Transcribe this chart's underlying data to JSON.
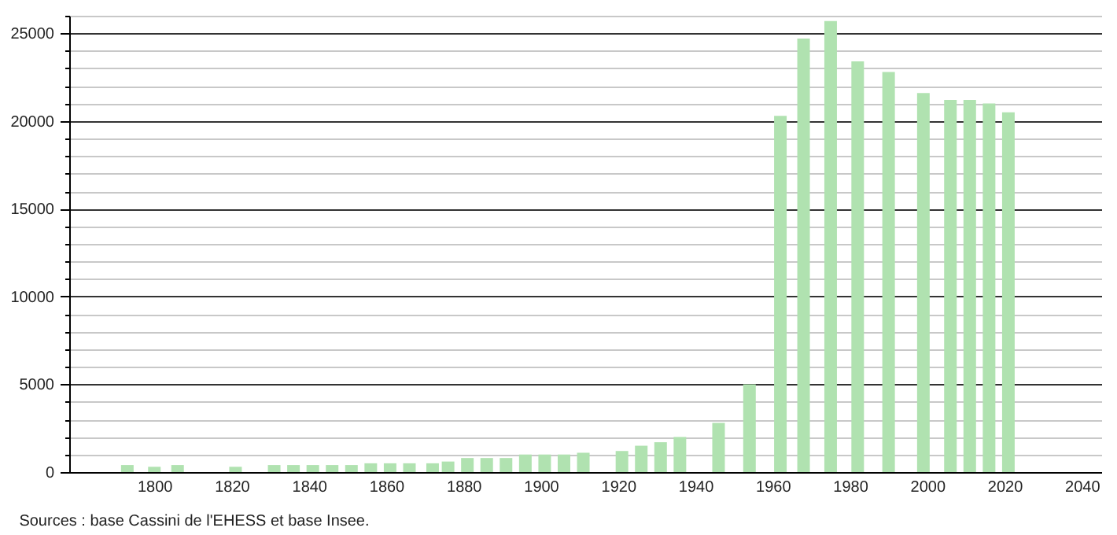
{
  "chart_data": {
    "type": "bar",
    "x": [
      1793,
      1800,
      1806,
      1821,
      1831,
      1836,
      1841,
      1846,
      1851,
      1856,
      1861,
      1866,
      1872,
      1876,
      1881,
      1886,
      1891,
      1896,
      1901,
      1906,
      1911,
      1921,
      1926,
      1931,
      1936,
      1946,
      1954,
      1962,
      1968,
      1975,
      1982,
      1990,
      1999,
      2006,
      2011,
      2016,
      2021
    ],
    "values": [
      400,
      300,
      400,
      300,
      400,
      400,
      400,
      400,
      400,
      500,
      500,
      500,
      500,
      600,
      800,
      800,
      800,
      1000,
      1000,
      1000,
      1100,
      1200,
      1500,
      1700,
      2000,
      2800,
      5000,
      20300,
      24700,
      25700,
      23400,
      22800,
      21600,
      21200,
      21200,
      21000,
      20500
    ],
    "color": "#b0e2b0",
    "xlim": [
      1780,
      2043
    ],
    "xticks": [
      1800,
      1820,
      1840,
      1860,
      1880,
      1900,
      1920,
      1940,
      1960,
      1980,
      2000,
      2020,
      2040
    ],
    "ylim": [
      0,
      26000
    ],
    "yticks": [
      0,
      {
        "value": 1000,
        "label": null
      },
      {
        "value": 2000,
        "label": null
      },
      {
        "value": 3000,
        "label": null
      },
      {
        "value": 4000,
        "label": null
      },
      5000,
      {
        "value": 6000,
        "label": null
      },
      {
        "value": 7000,
        "label": null
      },
      {
        "value": 8000,
        "label": null
      },
      {
        "value": 9000,
        "label": null
      },
      10000,
      {
        "value": 11000,
        "label": null
      },
      {
        "value": 12000,
        "label": null
      },
      {
        "value": 13000,
        "label": null
      },
      {
        "value": 14000,
        "label": null
      },
      15000,
      {
        "value": 16000,
        "label": null
      },
      {
        "value": 17000,
        "label": null
      },
      {
        "value": 18000,
        "label": null
      },
      {
        "value": 19000,
        "label": null
      },
      20000,
      {
        "value": 21000,
        "label": null
      },
      {
        "value": 22000,
        "label": null
      },
      {
        "value": 23000,
        "label": null
      },
      {
        "value": 24000,
        "label": null
      },
      25000,
      {
        "value": 26000,
        "label": null
      }
    ],
    "grid": "y",
    "annotations": [
      "Sources : base Cassini de l'EHESS et base Insee."
    ]
  }
}
